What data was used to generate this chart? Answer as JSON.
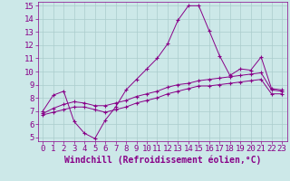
{
  "xlabel": "Windchill (Refroidissement éolien,°C)",
  "bg_color": "#cce8e8",
  "grid_color": "#aacccc",
  "line_color": "#880088",
  "xlim": [
    -0.5,
    23.5
  ],
  "ylim": [
    4.7,
    15.3
  ],
  "xticks": [
    0,
    1,
    2,
    3,
    4,
    5,
    6,
    7,
    8,
    9,
    10,
    11,
    12,
    13,
    14,
    15,
    16,
    17,
    18,
    19,
    20,
    21,
    22,
    23
  ],
  "yticks": [
    5,
    6,
    7,
    8,
    9,
    10,
    11,
    12,
    13,
    14,
    15
  ],
  "line1_x": [
    0,
    1,
    2,
    3,
    4,
    5,
    6,
    7,
    8,
    9,
    10,
    11,
    12,
    13,
    14,
    15,
    16,
    17,
    18,
    19,
    20,
    21,
    22,
    23
  ],
  "line1_y": [
    7.0,
    8.2,
    8.5,
    6.2,
    5.3,
    4.9,
    6.3,
    7.3,
    8.6,
    9.4,
    10.2,
    11.0,
    12.1,
    13.9,
    15.0,
    15.0,
    13.1,
    11.2,
    9.7,
    10.2,
    10.1,
    11.1,
    8.7,
    8.6
  ],
  "line2_x": [
    0,
    1,
    2,
    3,
    4,
    5,
    6,
    7,
    8,
    9,
    10,
    11,
    12,
    13,
    14,
    15,
    16,
    17,
    18,
    19,
    20,
    21,
    22,
    23
  ],
  "line2_y": [
    6.8,
    7.2,
    7.5,
    7.7,
    7.6,
    7.4,
    7.4,
    7.6,
    7.8,
    8.1,
    8.3,
    8.5,
    8.8,
    9.0,
    9.1,
    9.3,
    9.4,
    9.5,
    9.6,
    9.7,
    9.8,
    9.9,
    8.6,
    8.5
  ],
  "line3_x": [
    0,
    1,
    2,
    3,
    4,
    5,
    6,
    7,
    8,
    9,
    10,
    11,
    12,
    13,
    14,
    15,
    16,
    17,
    18,
    19,
    20,
    21,
    22,
    23
  ],
  "line3_y": [
    6.7,
    6.9,
    7.1,
    7.3,
    7.3,
    7.1,
    6.9,
    7.1,
    7.3,
    7.6,
    7.8,
    8.0,
    8.3,
    8.5,
    8.7,
    8.9,
    8.9,
    9.0,
    9.1,
    9.2,
    9.3,
    9.4,
    8.3,
    8.3
  ],
  "tick_fontsize": 6.5,
  "label_fontsize": 7.0
}
